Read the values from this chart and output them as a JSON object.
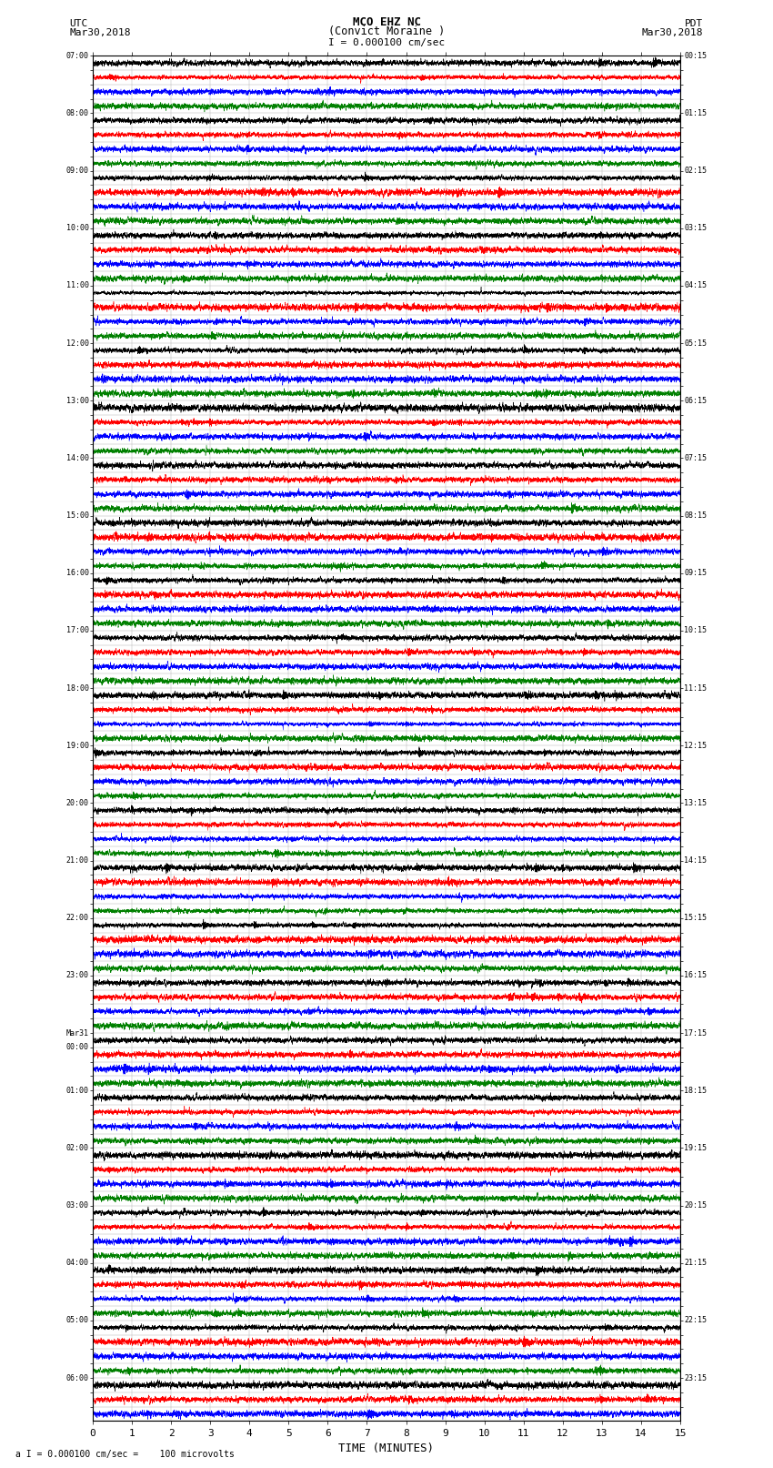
{
  "title_line1": "MCO EHZ NC",
  "title_line2": "(Convict Moraine )",
  "scale_label": "I = 0.000100 cm/sec",
  "footer_label": "a I = 0.000100 cm/sec =    100 microvolts",
  "utc_label": "UTC",
  "utc_date": "Mar30,2018",
  "pdt_label": "PDT",
  "pdt_date": "Mar30,2018",
  "xlabel": "TIME (MINUTES)",
  "xlim": [
    0,
    15
  ],
  "xticks": [
    0,
    1,
    2,
    3,
    4,
    5,
    6,
    7,
    8,
    9,
    10,
    11,
    12,
    13,
    14,
    15
  ],
  "background_color": "#ffffff",
  "grid_color": "#aaaaaa",
  "trace_colors": [
    "black",
    "red",
    "blue",
    "green"
  ],
  "left_labels": [
    "07:00",
    "",
    "",
    "",
    "08:00",
    "",
    "",
    "",
    "09:00",
    "",
    "",
    "",
    "10:00",
    "",
    "",
    "",
    "11:00",
    "",
    "",
    "",
    "12:00",
    "",
    "",
    "",
    "13:00",
    "",
    "",
    "",
    "14:00",
    "",
    "",
    "",
    "15:00",
    "",
    "",
    "",
    "16:00",
    "",
    "",
    "",
    "17:00",
    "",
    "",
    "",
    "18:00",
    "",
    "",
    "",
    "19:00",
    "",
    "",
    "",
    "20:00",
    "",
    "",
    "",
    "21:00",
    "",
    "",
    "",
    "22:00",
    "",
    "",
    "",
    "23:00",
    "",
    "",
    "",
    "Mar31",
    "00:00",
    "",
    "",
    "01:00",
    "",
    "",
    "",
    "02:00",
    "",
    "",
    "",
    "03:00",
    "",
    "",
    "",
    "04:00",
    "",
    "",
    "",
    "05:00",
    "",
    "",
    "",
    "06:00",
    "",
    ""
  ],
  "right_labels": [
    "00:15",
    "",
    "",
    "",
    "01:15",
    "",
    "",
    "",
    "02:15",
    "",
    "",
    "",
    "03:15",
    "",
    "",
    "",
    "04:15",
    "",
    "",
    "",
    "05:15",
    "",
    "",
    "",
    "06:15",
    "",
    "",
    "",
    "07:15",
    "",
    "",
    "",
    "08:15",
    "",
    "",
    "",
    "09:15",
    "",
    "",
    "",
    "10:15",
    "",
    "",
    "",
    "11:15",
    "",
    "",
    "",
    "12:15",
    "",
    "",
    "",
    "13:15",
    "",
    "",
    "",
    "14:15",
    "",
    "",
    "",
    "15:15",
    "",
    "",
    "",
    "16:15",
    "",
    "",
    "",
    "17:15",
    "",
    "",
    "",
    "18:15",
    "",
    "",
    "",
    "19:15",
    "",
    "",
    "",
    "20:15",
    "",
    "",
    "",
    "21:15",
    "",
    "",
    "",
    "22:15",
    "",
    "",
    "",
    "23:15",
    "",
    ""
  ],
  "n_rows": 95,
  "seed": 42
}
